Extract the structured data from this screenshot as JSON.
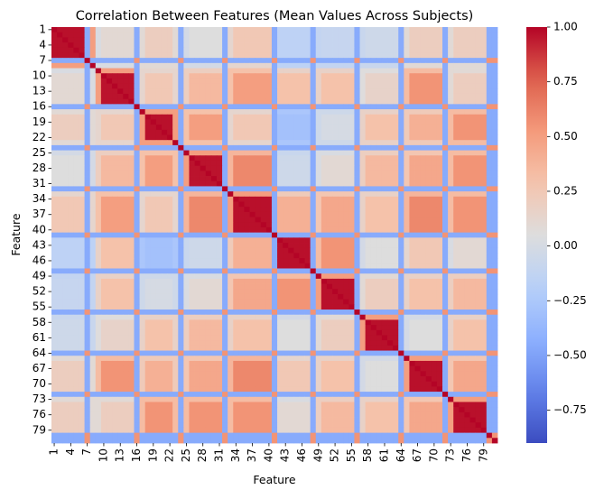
{
  "chart_data": {
    "type": "heatmap",
    "title": "Correlation Between Features (Mean Values Across Subjects)",
    "xlabel": "Feature",
    "ylabel": "Feature",
    "n_features": 81,
    "tick_labels": [
      "1",
      "4",
      "7",
      "10",
      "13",
      "16",
      "19",
      "22",
      "25",
      "28",
      "31",
      "34",
      "37",
      "40",
      "43",
      "46",
      "49",
      "52",
      "55",
      "58",
      "61",
      "64",
      "67",
      "70",
      "73",
      "76",
      "79"
    ],
    "tick_step": 3,
    "colormap": "coolwarm",
    "vmin": -0.9,
    "vmax": 1.0,
    "colorbar_ticks": [
      1.0,
      0.75,
      0.5,
      0.25,
      0.0,
      -0.25,
      -0.5,
      -0.75
    ],
    "colorbar_labels": [
      "1.00",
      "0.75",
      "0.50",
      "0.25",
      "0.00",
      "−0.25",
      "−0.50",
      "−0.75"
    ],
    "blocks": [
      {
        "start": 1,
        "end": 6,
        "within": 0.97
      },
      {
        "start": 10,
        "end": 15,
        "within": 0.96
      },
      {
        "start": 18,
        "end": 22,
        "within": 0.97
      },
      {
        "start": 26,
        "end": 31,
        "within": 0.96
      },
      {
        "start": 34,
        "end": 40,
        "within": 0.97
      },
      {
        "start": 42,
        "end": 47,
        "within": 0.97
      },
      {
        "start": 50,
        "end": 55,
        "within": 0.97
      },
      {
        "start": 58,
        "end": 63,
        "within": 0.97
      },
      {
        "start": 66,
        "end": 71,
        "within": 0.97
      },
      {
        "start": 74,
        "end": 79,
        "within": 0.97
      }
    ],
    "block_between": [
      [
        1.0,
        0.1,
        0.2,
        0.05,
        0.25,
        -0.15,
        -0.1,
        -0.05,
        0.2,
        0.2
      ],
      [
        0.1,
        1.0,
        0.25,
        0.35,
        0.5,
        0.3,
        0.3,
        0.15,
        0.55,
        0.2
      ],
      [
        0.2,
        0.25,
        1.0,
        0.5,
        0.25,
        -0.3,
        0.0,
        0.3,
        0.4,
        0.55
      ],
      [
        0.05,
        0.35,
        0.5,
        1.0,
        0.6,
        -0.05,
        0.1,
        0.35,
        0.45,
        0.55
      ],
      [
        0.25,
        0.5,
        0.25,
        0.6,
        1.0,
        0.4,
        0.45,
        0.3,
        0.6,
        0.55
      ],
      [
        -0.15,
        0.3,
        -0.3,
        -0.05,
        0.4,
        1.0,
        0.55,
        0.05,
        0.25,
        0.1
      ],
      [
        -0.1,
        0.3,
        0.0,
        0.1,
        0.45,
        0.55,
        1.0,
        0.2,
        0.3,
        0.35
      ],
      [
        -0.05,
        0.15,
        0.3,
        0.35,
        0.3,
        0.05,
        0.2,
        1.0,
        0.05,
        0.3
      ],
      [
        0.2,
        0.55,
        0.4,
        0.45,
        0.6,
        0.25,
        0.3,
        0.05,
        1.0,
        0.45
      ],
      [
        0.2,
        0.2,
        0.55,
        0.55,
        0.55,
        0.1,
        0.35,
        0.3,
        0.45,
        1.0
      ]
    ],
    "negative_features": [
      7,
      16,
      24,
      32,
      41,
      48,
      56,
      64,
      72,
      80,
      81
    ],
    "negative_value": -0.45,
    "negative_cross": 0.55
  }
}
